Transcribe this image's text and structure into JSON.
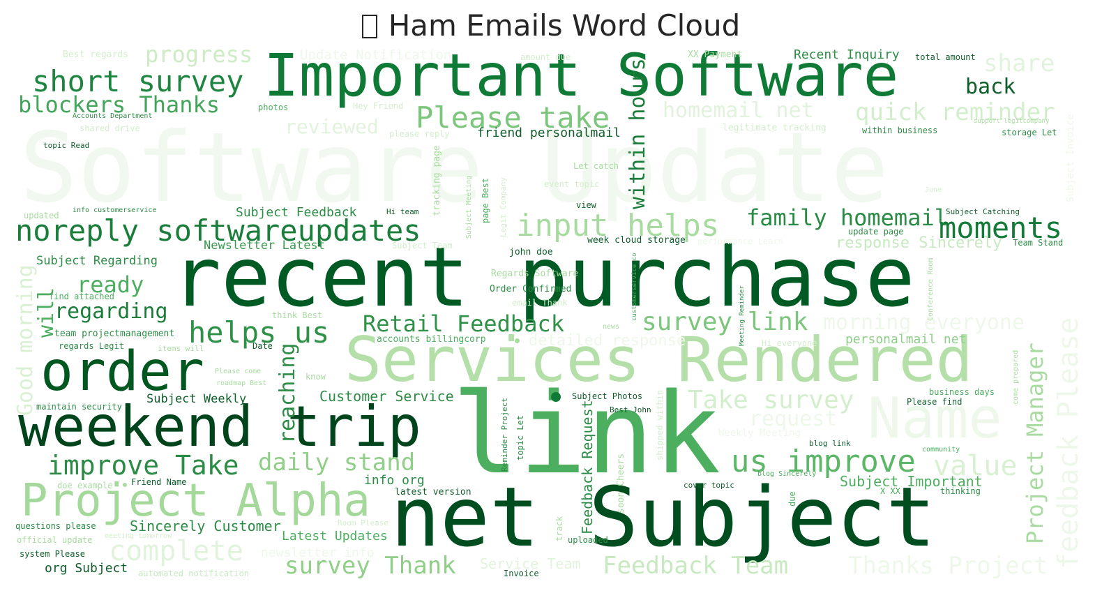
{
  "title": "Ham Emails Word Cloud",
  "words": {
    "software_update_bg": "Software Update",
    "recent_purchase": "recent purchase",
    "net_subject": "net Subject",
    "link": "link",
    "services_rendered": "Services Rendered",
    "important_software": "Important Software",
    "order": "order",
    "weekend_trip": "weekend trip",
    "project_alpha": "Project Alpha",
    "noreply": "noreply softwareupdates",
    "short_survey": "short survey",
    "blockers_thanks": "blockers Thanks",
    "progress": "progress",
    "please_take": "Please take",
    "input_helps": "input helps",
    "family_homemail": "family homemail",
    "moments": "moments",
    "helps_us": "helps us",
    "retail_feedback": "Retail Feedback",
    "survey_link": "survey link",
    "improve_take": "improve Take",
    "daily_stand": "daily stand",
    "us_improve": "us improve",
    "value": "value",
    "complete": "complete",
    "survey_thank": "survey Thank",
    "feedback_team": "Feedback Team",
    "thanks_project": "Thanks Project",
    "name": "Name",
    "take_survey": "Take survey",
    "request": "request",
    "ready": "ready",
    "regarding": "regarding",
    "within_hours": "within hours",
    "feedback_please": "feedback Please",
    "project_manager": "Project Manager",
    "good_morning": "Good morning",
    "will": "will",
    "reaching": "reaching",
    "homemail_net": "homemail net",
    "quick_reminder": "quick reminder",
    "share": "share",
    "back": "back",
    "reviewed": "reviewed",
    "morning_everyone": "morning everyone",
    "response_sincerely": "response Sincerely",
    "customer_service": "Customer Service",
    "subject_feedback": "Subject Feedback",
    "newsletter_latest": "Newsletter Latest",
    "subject_regarding": "Subject Regarding",
    "sincerely_customer": "Sincerely Customer",
    "latest_updates": "Latest Updates",
    "subject_weekly": "Subject Weekly",
    "subject_important": "Subject Important",
    "feedback_request": "Feedback Request",
    "info_org": "info org",
    "org_subject": "org Subject",
    "personalmail_net": "personalmail net",
    "friend_personalmail": "friend personalmail",
    "recent_inquiry": "Recent Inquiry",
    "update_notification": "Update Notification",
    "detailed_response": "detailed response",
    "service_team": "Service Team",
    "best_regards": "Best regards",
    "accounts_department": "Accounts Department",
    "shared_drive": "shared drive",
    "topic_read": "topic Read",
    "photos": "photos",
    "hey_friend": "Hey Friend",
    "please_reply": "please reply",
    "amount_due": "amount due",
    "xx_payment": "XX Payment",
    "total_amount": "total amount",
    "legitimate_tracking": "legitimate tracking",
    "within_business": "within business",
    "storage_let": "storage Let",
    "support_legitcompany": "support legitcompany",
    "let_catch": "Let catch",
    "event_topic": "event topic",
    "view": "view",
    "hi_team": "Hi team",
    "updated": "updated",
    "info_customerservice": "info customerservice",
    "subject_catching": "Subject Catching",
    "update_page": "update page",
    "week_cloud_storage": "week cloud storage",
    "team_stand": "Team Stand",
    "john_doe": "john doe",
    "regards_software": "Regards Software",
    "order_confirmed": "Order Confirmed",
    "email_thank": "email Thank",
    "find_attached": "find attached",
    "team_projectmanagement": "team projectmanagement",
    "regards_legit": "regards Legit",
    "items_will": "items will",
    "date": "Date",
    "think_best": "think Best",
    "accounts_billingcorp": "accounts billingcorp",
    "hi_everyone": "Hi everyone",
    "please_come": "Please come",
    "roadmap_best": "roadmap Best",
    "know": "know",
    "maintain_security": "maintain security",
    "subject_photos": "Subject Photos",
    "best_john": "Best John",
    "please_find": "Please find",
    "business_days": "business days",
    "blog_link": "blog link",
    "community": "community",
    "blog_sincerely": "blog Sincerely",
    "friend_name": "Friend Name",
    "doe_example": "doe example",
    "latest_version": "latest version",
    "cover_topic": "cover topic",
    "x_xx": "X XX",
    "thinking": "thinking",
    "questions_please": "questions please",
    "official_update": "official update",
    "system_please": "system Please",
    "meeting_tomorrow": "meeting tomorrow",
    "uploaded": "uploaded",
    "automated_notification": "automated notification",
    "invoice": "Invoice",
    "newsletter_info": "newsletter info",
    "news": "news",
    "subject_invoice": "Subject Invoice",
    "june": "June",
    "subject_team": "Subject Team",
    "performance_learn": "performance Learn",
    "track": "track",
    "soon_cheers": "soon Cheers",
    "page_best": "page Best",
    "tracking_page": "tracking page",
    "subject_meeting": "Subject Meeting",
    "legit_company": "Legit Company",
    "topic_let": "topic Let",
    "reminder_project": "Reminder Project",
    "meeting_reminder": "Meeting Reminder",
    "conference_room": "Conference Room",
    "customerservice_co": "customerservice co",
    "shipped_within": "shipped within",
    "come_prepared": "come prepared",
    "due": "due",
    "weekly_meeting": "Weekly Meeting",
    "room_please": "Room Please"
  }
}
